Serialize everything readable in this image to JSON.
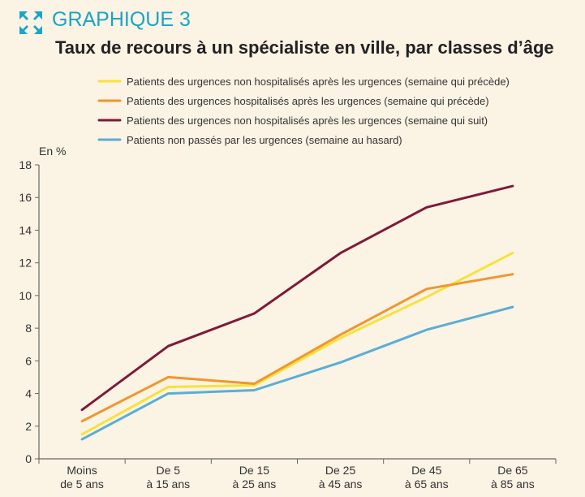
{
  "header": {
    "figure_label": "GRAPHIQUE 3",
    "icon_name": "expand-arrows-icon",
    "accent_color": "#1aa5c8"
  },
  "chart_data": {
    "type": "line",
    "title": "Taux de recours à un spécialiste en ville, par classes d’âge",
    "ylabel": "En %",
    "xlabel": "",
    "ylim": [
      0,
      18
    ],
    "yticks": [
      0,
      2,
      4,
      6,
      8,
      10,
      12,
      14,
      16,
      18
    ],
    "grid": false,
    "legend_position": "top",
    "categories": [
      [
        "Moins",
        "de 5 ans"
      ],
      [
        "De 5",
        "à 15 ans"
      ],
      [
        "De 15",
        "à 25 ans"
      ],
      [
        "De 25",
        "à 45 ans"
      ],
      [
        "De 45",
        "à 65 ans"
      ],
      [
        "De 65",
        "à 85 ans"
      ]
    ],
    "series": [
      {
        "name": "Patients des urgences non hospitalisés après les urgences (semaine qui précède)",
        "color": "#f7e23a",
        "values": [
          1.5,
          4.4,
          4.5,
          7.4,
          9.9,
          12.6
        ]
      },
      {
        "name": "Patients des urgences hospitalisés après les urgences (semaine qui précède)",
        "color": "#f0962e",
        "values": [
          2.3,
          5.0,
          4.6,
          7.6,
          10.4,
          11.3
        ]
      },
      {
        "name": "Patients des urgences non hospitalisés après les urgences (semaine qui suit)",
        "color": "#7e1a3a",
        "values": [
          3.0,
          6.9,
          8.9,
          12.6,
          15.4,
          16.7
        ]
      },
      {
        "name": "Patients non passés par les urgences (semaine au hasard)",
        "color": "#5aaed6",
        "values": [
          1.2,
          4.0,
          4.2,
          5.9,
          7.9,
          9.3
        ]
      }
    ]
  }
}
